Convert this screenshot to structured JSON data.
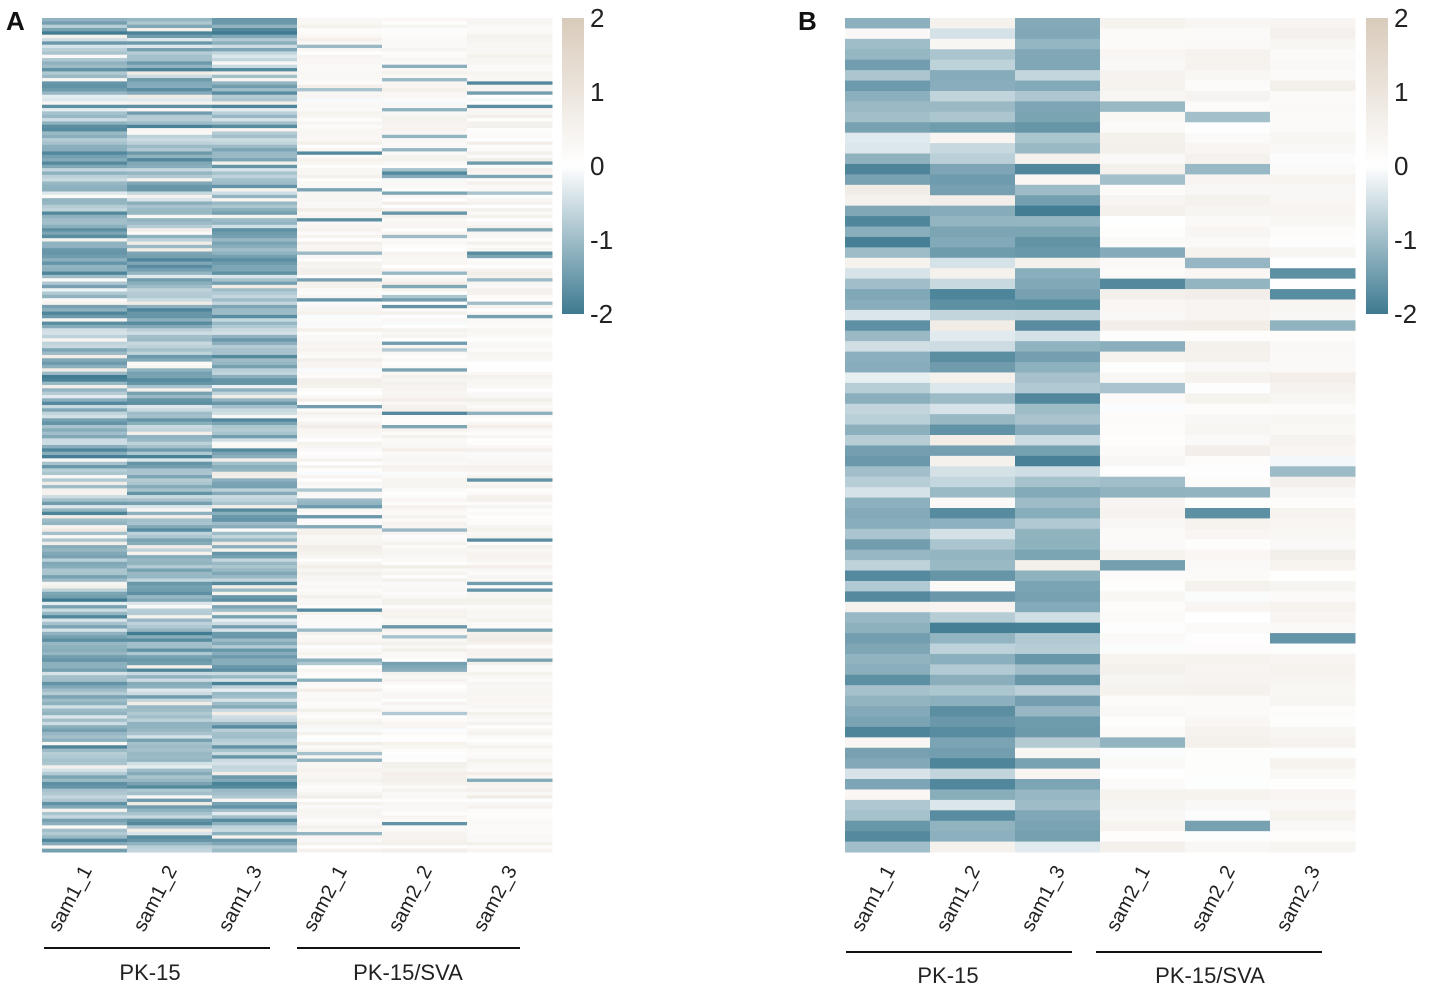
{
  "figure": {
    "colors": {
      "low": "#3e7a91",
      "mid": "#ffffff",
      "high": "#d9cbbb"
    }
  },
  "chart_data": [
    {
      "type": "heatmap",
      "panel": "A",
      "columns": [
        "sam1_1",
        "sam1_2",
        "sam1_3",
        "sam2_1",
        "sam2_2",
        "sam2_3"
      ],
      "groups": [
        {
          "label": "PK-15",
          "columns": [
            "sam1_1",
            "sam1_2",
            "sam1_3"
          ]
        },
        {
          "label": "PK-15/SVA",
          "columns": [
            "sam2_1",
            "sam2_2",
            "sam2_3"
          ]
        }
      ],
      "n_rows": 250,
      "row_trend": "PK-15 samples mostly low (blue), PK-15/SVA samples mostly near zero to high (beige)",
      "colorbar": {
        "min": -2,
        "max": 2,
        "ticks": [
          "2",
          "1",
          "0",
          "-1",
          "-2"
        ]
      }
    },
    {
      "type": "heatmap",
      "panel": "B",
      "columns": [
        "sam1_1",
        "sam1_2",
        "sam1_3",
        "sam2_1",
        "sam2_2",
        "sam2_3"
      ],
      "groups": [
        {
          "label": "PK-15",
          "columns": [
            "sam1_1",
            "sam1_2",
            "sam1_3"
          ]
        },
        {
          "label": "PK-15/SVA",
          "columns": [
            "sam2_1",
            "sam2_2",
            "sam2_3"
          ]
        }
      ],
      "n_rows": 80,
      "row_trend": "PK-15 samples mostly low (blue), PK-15/SVA samples mostly near zero to high (beige)",
      "colorbar": {
        "min": -2,
        "max": 2,
        "ticks": [
          "2",
          "1",
          "0",
          "-1",
          "-2"
        ]
      }
    }
  ]
}
